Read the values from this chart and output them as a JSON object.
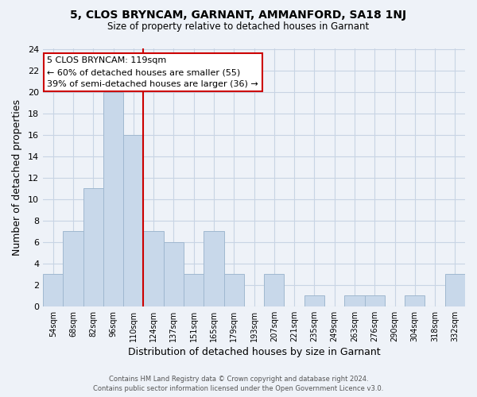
{
  "title": "5, CLOS BRYNCAM, GARNANT, AMMANFORD, SA18 1NJ",
  "subtitle": "Size of property relative to detached houses in Garnant",
  "xlabel": "Distribution of detached houses by size in Garnant",
  "ylabel": "Number of detached properties",
  "bar_labels": [
    "54sqm",
    "68sqm",
    "82sqm",
    "96sqm",
    "110sqm",
    "124sqm",
    "137sqm",
    "151sqm",
    "165sqm",
    "179sqm",
    "193sqm",
    "207sqm",
    "221sqm",
    "235sqm",
    "249sqm",
    "263sqm",
    "276sqm",
    "290sqm",
    "304sqm",
    "318sqm",
    "332sqm"
  ],
  "bar_values": [
    3,
    7,
    11,
    20,
    16,
    7,
    6,
    3,
    7,
    3,
    0,
    3,
    0,
    1,
    0,
    1,
    1,
    0,
    1,
    0,
    3
  ],
  "bar_color": "#c8d8ea",
  "bar_edge_color": "#a0b8d0",
  "vline_x": 4.5,
  "vline_color": "#cc0000",
  "annotation_title": "5 CLOS BRYNCAM: 119sqm",
  "annotation_line1": "← 60% of detached houses are smaller (55)",
  "annotation_line2": "39% of semi-detached houses are larger (36) →",
  "annotation_box_color": "#ffffff",
  "annotation_box_edge": "#cc0000",
  "ylim": [
    0,
    24
  ],
  "yticks": [
    0,
    2,
    4,
    6,
    8,
    10,
    12,
    14,
    16,
    18,
    20,
    22,
    24
  ],
  "grid_color": "#c8d4e4",
  "background_color": "#eef2f8",
  "footer_line1": "Contains HM Land Registry data © Crown copyright and database right 2024.",
  "footer_line2": "Contains public sector information licensed under the Open Government Licence v3.0."
}
